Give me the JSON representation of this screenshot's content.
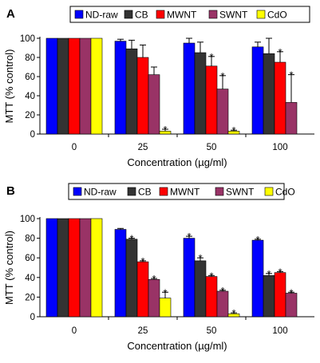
{
  "chart_data": [
    {
      "type": "bar",
      "panel_label": "A",
      "xlabel": "Concentration (µg/ml)",
      "ylabel": "MTT (% control)",
      "categories": [
        "0",
        "25",
        "50",
        "100"
      ],
      "ylim": [
        0,
        100
      ],
      "yticks": [
        "0",
        "20",
        "40",
        "60",
        "80",
        "100"
      ],
      "legend_position": "top",
      "series": [
        {
          "name": "ND-raw",
          "color": "#0000ff",
          "values": [
            100,
            97,
            95,
            91
          ],
          "errors": [
            0,
            2,
            5,
            5
          ],
          "significant": [
            false,
            false,
            false,
            false
          ]
        },
        {
          "name": "CB",
          "color": "#333333",
          "values": [
            100,
            89,
            85,
            84
          ],
          "errors": [
            0,
            9,
            11,
            16
          ],
          "significant": [
            false,
            false,
            false,
            false
          ]
        },
        {
          "name": "MWNT",
          "color": "#ff0000",
          "values": [
            100,
            80,
            71,
            75
          ],
          "errors": [
            0,
            13,
            10,
            11
          ],
          "significant": [
            false,
            false,
            true,
            true
          ]
        },
        {
          "name": "SWNT",
          "color": "#993366",
          "values": [
            100,
            62,
            47,
            33
          ],
          "errors": [
            0,
            8,
            14,
            29
          ],
          "significant": [
            false,
            false,
            true,
            true
          ]
        },
        {
          "name": "CdO",
          "color": "#ffff00",
          "values": [
            100,
            3,
            3,
            0
          ],
          "errors": [
            0,
            2,
            1,
            0
          ],
          "significant": [
            false,
            true,
            true,
            false
          ]
        }
      ]
    },
    {
      "type": "bar",
      "panel_label": "B",
      "xlabel": "Concentration (µg/ml)",
      "ylabel": "MTT (% control)",
      "categories": [
        "0",
        "25",
        "50",
        "100"
      ],
      "ylim": [
        0,
        100
      ],
      "yticks": [
        "0",
        "20",
        "40",
        "60",
        "80",
        "100"
      ],
      "legend_position": "top",
      "series": [
        {
          "name": "ND-raw",
          "color": "#0000ff",
          "values": [
            100,
            89,
            80,
            78
          ],
          "errors": [
            0,
            1,
            2,
            1
          ],
          "significant": [
            false,
            false,
            true,
            true
          ]
        },
        {
          "name": "CB",
          "color": "#333333",
          "values": [
            100,
            79,
            57,
            42
          ],
          "errors": [
            0,
            1,
            3,
            2
          ],
          "significant": [
            false,
            true,
            true,
            true
          ]
        },
        {
          "name": "MWNT",
          "color": "#ff0000",
          "values": [
            100,
            56,
            41,
            45
          ],
          "errors": [
            0,
            1,
            1,
            1
          ],
          "significant": [
            false,
            true,
            true,
            true
          ]
        },
        {
          "name": "SWNT",
          "color": "#993366",
          "values": [
            100,
            38,
            26,
            24
          ],
          "errors": [
            0,
            1,
            1,
            1
          ],
          "significant": [
            false,
            true,
            true,
            true
          ]
        },
        {
          "name": "CdO",
          "color": "#ffff00",
          "values": [
            100,
            19,
            3,
            0
          ],
          "errors": [
            0,
            6,
            1,
            0
          ],
          "significant": [
            false,
            true,
            true,
            false
          ]
        }
      ]
    }
  ]
}
